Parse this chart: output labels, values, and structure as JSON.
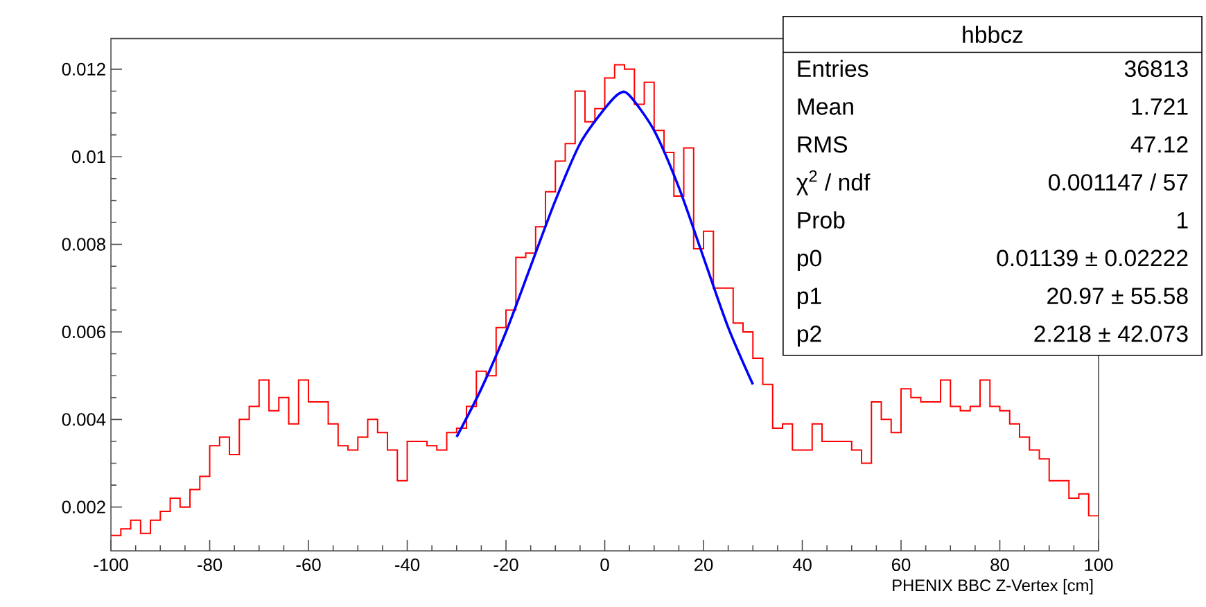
{
  "chart_data": {
    "type": "histogram",
    "xlabel": "PHENIX BBC Z-Vertex [cm]",
    "xlim": [
      -100,
      100
    ],
    "xticks": [
      -100,
      -80,
      -60,
      -40,
      -20,
      0,
      20,
      40,
      60,
      80,
      100
    ],
    "ylim": [
      0.001,
      0.0127
    ],
    "yticks": [
      0.002,
      0.004,
      0.006,
      0.008,
      0.01,
      0.012
    ],
    "series": [
      {
        "color": "#ff0000",
        "bins": [
          -100,
          -98,
          -96,
          -94,
          -92,
          -90,
          -88,
          -86,
          -84,
          -82,
          -80,
          -78,
          -76,
          -74,
          -72,
          -70,
          -68,
          -66,
          -64,
          -62,
          -60,
          -58,
          -56,
          -54,
          -52,
          -50,
          -48,
          -46,
          -44,
          -42,
          -40,
          -38,
          -36,
          -34,
          -32,
          -30,
          -28,
          -26,
          -24,
          -22,
          -20,
          -18,
          -16,
          -14,
          -12,
          -10,
          -8,
          -6,
          -4,
          -2,
          0,
          2,
          4,
          6,
          8,
          10,
          12,
          14,
          16,
          18,
          20,
          22,
          24,
          26,
          28,
          30,
          32,
          34,
          36,
          38,
          40,
          42,
          44,
          46,
          48,
          50,
          52,
          54,
          56,
          58,
          60,
          62,
          64,
          66,
          68,
          70,
          72,
          74,
          76,
          78,
          80,
          82,
          84,
          86,
          88,
          90,
          92,
          94,
          96,
          98,
          100
        ],
        "values": [
          0.00135,
          0.0015,
          0.0017,
          0.0014,
          0.0017,
          0.0019,
          0.0022,
          0.002,
          0.0024,
          0.0027,
          0.0034,
          0.0036,
          0.0032,
          0.004,
          0.0043,
          0.0049,
          0.0042,
          0.0045,
          0.0039,
          0.0049,
          0.0044,
          0.0044,
          0.0039,
          0.0034,
          0.0033,
          0.0036,
          0.004,
          0.0037,
          0.0033,
          0.0026,
          0.0035,
          0.0035,
          0.0034,
          0.0033,
          0.0037,
          0.0038,
          0.0043,
          0.0051,
          0.005,
          0.0061,
          0.0065,
          0.0077,
          0.0078,
          0.0084,
          0.0092,
          0.0099,
          0.0103,
          0.0115,
          0.0108,
          0.0111,
          0.0118,
          0.0121,
          0.012,
          0.0112,
          0.0117,
          0.0106,
          0.0101,
          0.0091,
          0.0102,
          0.0079,
          0.0083,
          0.007,
          0.007,
          0.0062,
          0.006,
          0.0054,
          0.0048,
          0.0038,
          0.0039,
          0.0033,
          0.0033,
          0.0039,
          0.0035,
          0.0035,
          0.0035,
          0.0033,
          0.003,
          0.0044,
          0.004,
          0.0037,
          0.0047,
          0.0045,
          0.0044,
          0.0044,
          0.0049,
          0.0043,
          0.0042,
          0.0043,
          0.0049,
          0.0043,
          0.0042,
          0.0039,
          0.0036,
          0.0033,
          0.0031,
          0.0026,
          0.0026,
          0.0022,
          0.0023,
          0.0018
        ]
      },
      {
        "type": "line",
        "color": "#0000ff",
        "x": [
          -30,
          -25,
          -20,
          -15,
          -10,
          -5,
          0,
          3,
          5,
          10,
          15,
          20,
          25,
          30
        ],
        "values": [
          0.0036,
          0.0047,
          0.006,
          0.0075,
          0.009,
          0.0103,
          0.0111,
          0.01145,
          0.0114,
          0.0106,
          0.0093,
          0.0077,
          0.0061,
          0.0048
        ]
      }
    ],
    "annotations": [
      "hbbcz",
      "Entries",
      "36813",
      "Mean",
      "1.721",
      "RMS",
      "47.12",
      "χ$^{2}$ / ndf",
      "0.001147 / 57",
      "Prob",
      "1",
      "p0",
      "0.01139 ± 0.02222",
      "p1",
      "20.97 ± 55.58",
      "p2",
      "2.218 ± 42.073"
    ]
  }
}
